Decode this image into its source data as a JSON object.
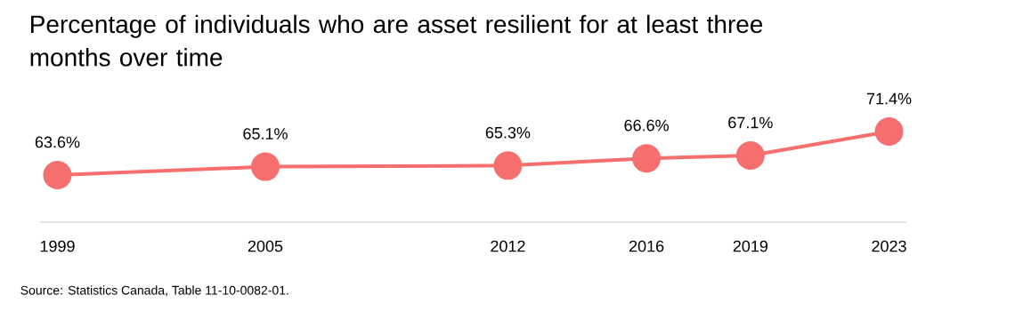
{
  "chart_data": {
    "type": "line",
    "title": "Percentage of individuals who are asset resilient for at least three months over time",
    "x": [
      1999,
      2005,
      2012,
      2016,
      2019,
      2023
    ],
    "values": [
      63.6,
      65.1,
      65.3,
      66.6,
      67.1,
      71.4
    ],
    "value_labels": [
      "63.6%",
      "65.1%",
      "65.3%",
      "66.6%",
      "67.1%",
      "71.4%"
    ],
    "color": "#f66f6f",
    "marker": "circle",
    "line_style": "solid",
    "grid": false,
    "tick_labels": "x",
    "xlim": [
      1998.5,
      2023.5
    ],
    "xticks": [
      1999,
      2005,
      2012,
      2016,
      2019,
      2023
    ],
    "annotations": [
      "Source: Statistics Canada, Table 11-10-0082-01."
    ]
  }
}
